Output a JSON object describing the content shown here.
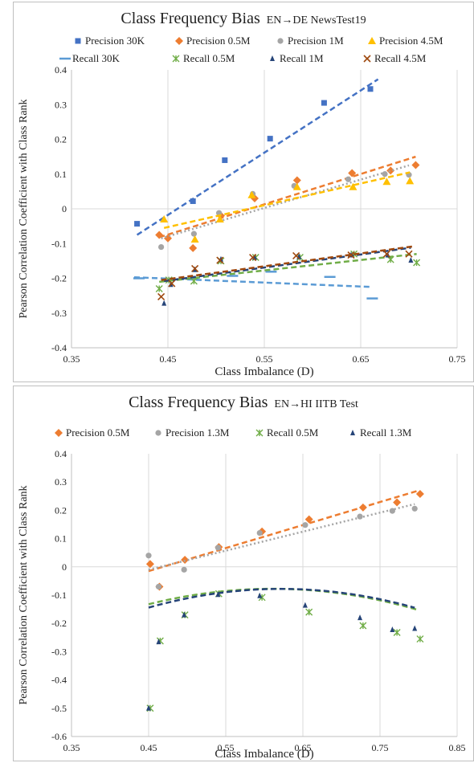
{
  "chart_data": [
    {
      "type": "scatter",
      "title": "Class Frequency Bias",
      "subtitle": "EN→DE  NewsTest19",
      "xlabel": "Class Imbalance (D)",
      "ylabel": "Pearson Correlation Coefficient with Class Rank",
      "xlim": [
        0.35,
        0.75
      ],
      "ylim": [
        -0.4,
        0.4
      ],
      "x_ticks": [
        "0.35",
        "0.45",
        "0.55",
        "0.65",
        "0.75"
      ],
      "y_ticks": [
        "-0.4",
        "-0.3",
        "-0.2",
        "-0.1",
        "0",
        "0.1",
        "0.2",
        "0.3",
        "0.4"
      ],
      "grid": "vertical",
      "legend_position": "top",
      "series": [
        {
          "name": "Precision 30K",
          "marker": "square",
          "color": "#4472c4",
          "points": [
            [
              0.418,
              -0.043
            ],
            [
              0.476,
              0.022
            ],
            [
              0.509,
              0.14
            ],
            [
              0.556,
              0.202
            ],
            [
              0.612,
              0.305
            ],
            [
              0.66,
              0.345
            ]
          ],
          "trend": {
            "kind": "linear",
            "style": "dashed",
            "from": [
              0.418,
              -0.075
            ],
            "to": [
              0.668,
              0.373
            ]
          }
        },
        {
          "name": "Precision 0.5M",
          "marker": "diamond",
          "color": "#ed7d31",
          "points": [
            [
              0.441,
              -0.075
            ],
            [
              0.45,
              -0.085
            ],
            [
              0.476,
              -0.113
            ],
            [
              0.505,
              -0.02
            ],
            [
              0.54,
              0.03
            ],
            [
              0.584,
              0.082
            ],
            [
              0.641,
              0.103
            ],
            [
              0.681,
              0.11
            ],
            [
              0.707,
              0.126
            ]
          ],
          "trend": {
            "kind": "linear",
            "style": "dashed",
            "from": [
              0.441,
              -0.082
            ],
            "to": [
              0.707,
              0.15
            ]
          }
        },
        {
          "name": "Precision 1M",
          "marker": "circle",
          "color": "#a5a5a5",
          "points": [
            [
              0.443,
              -0.11
            ],
            [
              0.477,
              -0.072
            ],
            [
              0.503,
              -0.012
            ],
            [
              0.538,
              0.043
            ],
            [
              0.581,
              0.066
            ],
            [
              0.637,
              0.085
            ],
            [
              0.675,
              0.1
            ],
            [
              0.7,
              0.098
            ]
          ],
          "trend": {
            "kind": "linear",
            "style": "dotted",
            "from": [
              0.443,
              -0.085
            ],
            "to": [
              0.7,
              0.125
            ]
          }
        },
        {
          "name": "Precision 4.5M",
          "marker": "triangle",
          "color": "#ffc000",
          "points": [
            [
              0.446,
              -0.03
            ],
            [
              0.478,
              -0.088
            ],
            [
              0.504,
              -0.03
            ],
            [
              0.537,
              0.04
            ],
            [
              0.584,
              0.063
            ],
            [
              0.642,
              0.063
            ],
            [
              0.677,
              0.078
            ],
            [
              0.701,
              0.08
            ]
          ],
          "trend": {
            "kind": "linear",
            "style": "dashed",
            "from": [
              0.446,
              -0.055
            ],
            "to": [
              0.701,
              0.105
            ]
          }
        },
        {
          "name": "Recall 30K",
          "marker": "dash",
          "color": "#5b9bd5",
          "points": [
            [
              0.42,
              -0.2
            ],
            [
              0.476,
              -0.2
            ],
            [
              0.517,
              -0.193
            ],
            [
              0.557,
              -0.181
            ],
            [
              0.618,
              -0.196
            ],
            [
              0.662,
              -0.258
            ]
          ],
          "trend": {
            "kind": "linear",
            "style": "dashed",
            "from": [
              0.415,
              -0.197
            ],
            "to": [
              0.662,
              -0.225
            ]
          }
        },
        {
          "name": "Recall 0.5M",
          "marker": "x-cross",
          "color": "#70ad47",
          "points": [
            [
              0.441,
              -0.23
            ],
            [
              0.451,
              -0.205
            ],
            [
              0.477,
              -0.208
            ],
            [
              0.505,
              -0.15
            ],
            [
              0.541,
              -0.14
            ],
            [
              0.587,
              -0.14
            ],
            [
              0.643,
              -0.13
            ],
            [
              0.681,
              -0.146
            ],
            [
              0.708,
              -0.155
            ]
          ],
          "trend": {
            "kind": "linear",
            "style": "dashed",
            "from": [
              0.441,
              -0.21
            ],
            "to": [
              0.708,
              -0.13
            ]
          }
        },
        {
          "name": "Recall 1M",
          "marker": "small-triangle",
          "color": "#264478",
          "points": [
            [
              0.446,
              -0.272
            ],
            [
              0.453,
              -0.218
            ],
            [
              0.478,
              -0.175
            ],
            [
              0.505,
              -0.145
            ],
            [
              0.54,
              -0.14
            ],
            [
              0.586,
              -0.138
            ],
            [
              0.64,
              -0.133
            ],
            [
              0.678,
              -0.133
            ],
            [
              0.702,
              -0.148
            ]
          ],
          "trend": {
            "kind": "linear",
            "style": "dashed",
            "from": [
              0.446,
              -0.208
            ],
            "to": [
              0.702,
              -0.112
            ]
          }
        },
        {
          "name": "Recall 4.5M",
          "marker": "x",
          "color": "#9e480e",
          "points": [
            [
              0.443,
              -0.253
            ],
            [
              0.454,
              -0.215
            ],
            [
              0.478,
              -0.172
            ],
            [
              0.504,
              -0.148
            ],
            [
              0.538,
              -0.14
            ],
            [
              0.583,
              -0.135
            ],
            [
              0.64,
              -0.133
            ],
            [
              0.677,
              -0.13
            ],
            [
              0.7,
              -0.13
            ]
          ],
          "trend": {
            "kind": "linear",
            "style": "dashed",
            "from": [
              0.443,
              -0.205
            ],
            "to": [
              0.705,
              -0.108
            ]
          }
        }
      ]
    },
    {
      "type": "scatter",
      "title": "Class Frequency Bias",
      "subtitle": "EN→HI  IITB Test",
      "xlabel": "Class Imbalance (D)",
      "ylabel": "Pearson Correlation Coefficient with Class Rank",
      "xlim": [
        0.35,
        0.85
      ],
      "ylim": [
        -0.6,
        0.4
      ],
      "x_ticks": [
        "0.35",
        "0.45",
        "0.55",
        "0.65",
        "0.75",
        "0.85"
      ],
      "y_ticks": [
        "-0.6",
        "-0.5",
        "-0.4",
        "-0.3",
        "-0.2",
        "-0.1",
        "0",
        "0.1",
        "0.2",
        "0.3",
        "0.4"
      ],
      "grid": "vertical",
      "legend_position": "top",
      "series": [
        {
          "name": "Precision 0.5M",
          "marker": "diamond",
          "color": "#ed7d31",
          "points": [
            [
              0.452,
              0.01
            ],
            [
              0.464,
              -0.07
            ],
            [
              0.497,
              0.025
            ],
            [
              0.541,
              0.07
            ],
            [
              0.597,
              0.125
            ],
            [
              0.658,
              0.168
            ],
            [
              0.728,
              0.21
            ],
            [
              0.772,
              0.228
            ],
            [
              0.802,
              0.258
            ]
          ],
          "trend": {
            "kind": "linear",
            "style": "dashed",
            "from": [
              0.45,
              -0.015
            ],
            "to": [
              0.8,
              0.27
            ]
          }
        },
        {
          "name": "Precision 1.3M",
          "marker": "circle",
          "color": "#a5a5a5",
          "points": [
            [
              0.45,
              0.04
            ],
            [
              0.463,
              -0.07
            ],
            [
              0.496,
              -0.01
            ],
            [
              0.54,
              0.068
            ],
            [
              0.594,
              0.12
            ],
            [
              0.653,
              0.148
            ],
            [
              0.724,
              0.178
            ],
            [
              0.766,
              0.198
            ],
            [
              0.795,
              0.206
            ]
          ],
          "trend": {
            "kind": "linear",
            "style": "dotted",
            "from": [
              0.45,
              -0.01
            ],
            "to": [
              0.795,
              0.222
            ]
          }
        },
        {
          "name": "Recall 0.5M",
          "marker": "x-cross",
          "color": "#70ad47",
          "points": [
            [
              0.452,
              -0.5
            ],
            [
              0.465,
              -0.262
            ],
            [
              0.497,
              -0.17
            ],
            [
              0.541,
              -0.095
            ],
            [
              0.597,
              -0.108
            ],
            [
              0.658,
              -0.16
            ],
            [
              0.728,
              -0.208
            ],
            [
              0.772,
              -0.232
            ],
            [
              0.802,
              -0.255
            ]
          ],
          "trend": {
            "kind": "poly2",
            "style": "dashed",
            "x": [
              0.45,
              0.8
            ],
            "coef": [
              -2.11,
              2.578,
              -0.865
            ]
          }
        },
        {
          "name": "Recall 1.3M",
          "marker": "small-triangle",
          "color": "#264478",
          "points": [
            [
              0.45,
              -0.5
            ],
            [
              0.463,
              -0.265
            ],
            [
              0.496,
              -0.17
            ],
            [
              0.54,
              -0.098
            ],
            [
              0.594,
              -0.102
            ],
            [
              0.653,
              -0.136
            ],
            [
              0.724,
              -0.18
            ],
            [
              0.766,
              -0.222
            ],
            [
              0.795,
              -0.218
            ]
          ],
          "trend": {
            "kind": "poly2",
            "style": "dashed",
            "x": [
              0.45,
              0.795
            ],
            "coef": [
              -2.235,
              2.781,
              -0.943
            ]
          }
        }
      ]
    }
  ]
}
